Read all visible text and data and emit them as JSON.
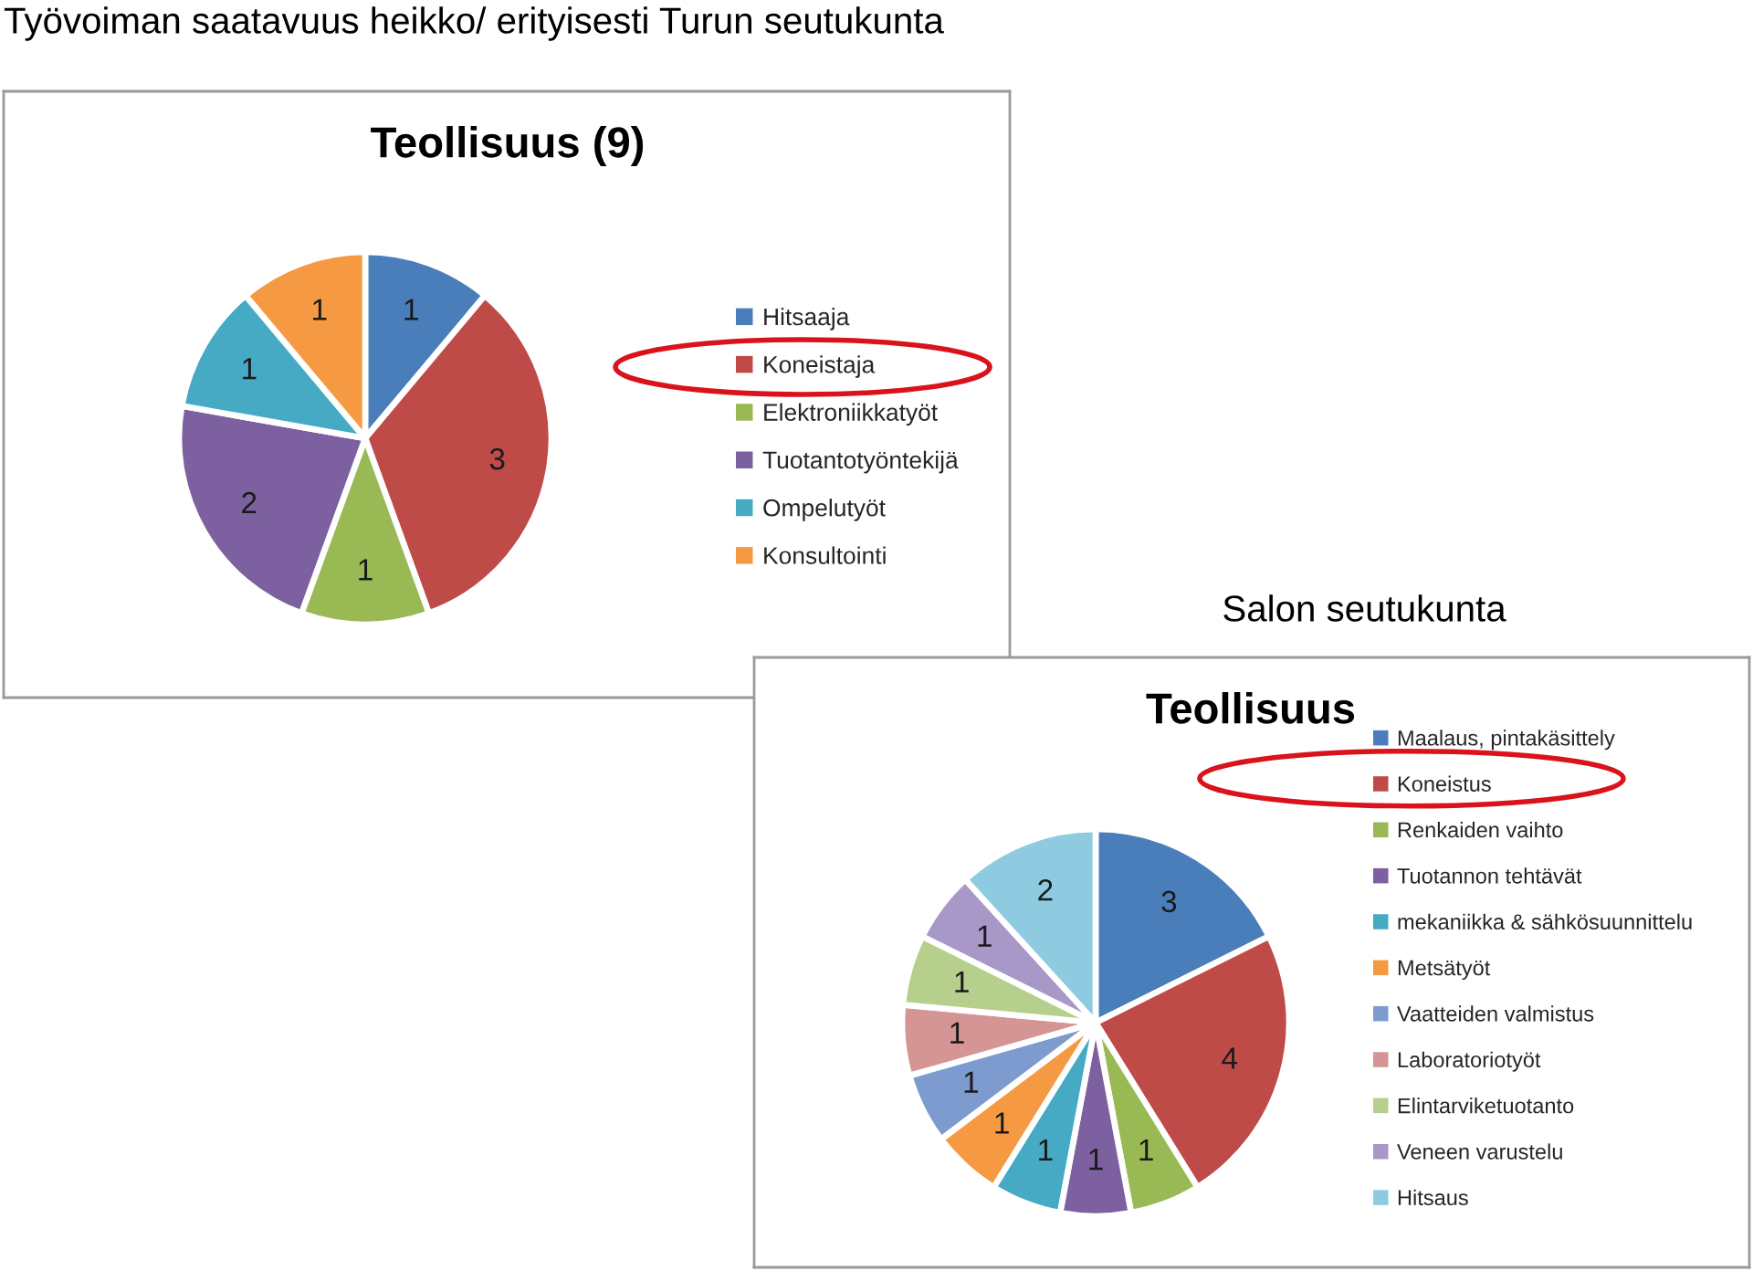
{
  "chart_data": [
    {
      "type": "pie",
      "title": "Teollisuus (9)",
      "categories": [
        "Hitsaaja",
        "Koneistaja",
        "Elektroniikkatyöt",
        "Tuotantotyöntekijä",
        "Ompelutyöt",
        "Konsultointi"
      ],
      "values": [
        1,
        3,
        1,
        2,
        1,
        1
      ],
      "colors": [
        "#4a7ebb",
        "#be4b48",
        "#98b954",
        "#7d60a0",
        "#46aac5",
        "#f59a42"
      ],
      "data_labels": true,
      "legend": "right",
      "annotations": [
        "Työvoiman saatavuus heikko/ erityisesti Turun seutukunta"
      ]
    },
    {
      "type": "pie",
      "title": "Teollisuus",
      "categories": [
        "Maalaus, pintakäsittely",
        "Koneistus",
        "Renkaiden vaihto",
        "Tuotannon tehtävät",
        "mekaniikka & sähkösuunnittelu",
        "Metsätyöt",
        "Vaatteiden valmistus",
        "Laboratoriotyöt",
        "Elintarviketuotanto",
        "Veneen varustelu",
        "Hitsaus"
      ],
      "values": [
        3,
        4,
        1,
        1,
        1,
        1,
        1,
        1,
        1,
        1,
        2
      ],
      "colors": [
        "#4a7ebb",
        "#be4b48",
        "#98b954",
        "#7d60a0",
        "#46aac5",
        "#f59a42",
        "#7e9bd0",
        "#d49594",
        "#b6cf8c",
        "#a898c7",
        "#8fcbe0"
      ],
      "data_labels": true,
      "legend": "right",
      "annotations": [
        "Salon seutukunta"
      ]
    }
  ]
}
